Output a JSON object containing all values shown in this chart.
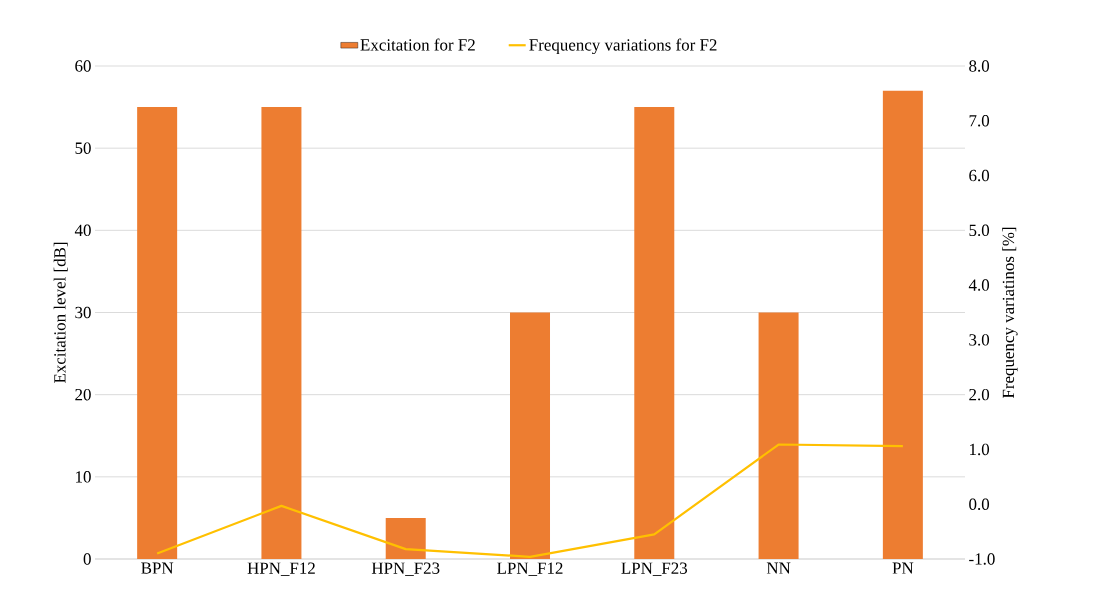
{
  "chart_data": {
    "type": "bar",
    "categories": [
      "BPN",
      "HPN_F12",
      "HPN_F23",
      "LPN_F12",
      "LPN_F23",
      "NN",
      "PN"
    ],
    "series": [
      {
        "name": "Excitation for F2",
        "color": "#ed7d31",
        "values": [
          55,
          55,
          5,
          30,
          55,
          30,
          57
        ]
      },
      {
        "name": "Frequency variations for F2",
        "type": "line",
        "axis": "y2",
        "color": "#ffc000",
        "values": [
          -0.9,
          -0.03,
          -0.82,
          -0.96,
          -0.55,
          1.09,
          1.06
        ]
      }
    ],
    "ylabel": "Excitation level [dB]",
    "y2label": "Frequency  variatinos [%]",
    "ylim": [
      0,
      60
    ],
    "yticks": [
      0,
      10,
      20,
      30,
      40,
      50,
      60
    ],
    "y2lim": [
      -1.0,
      8.0
    ],
    "y2ticks": [
      {
        "value": -1,
        "label": "-1.0"
      },
      {
        "value": 0,
        "label": "0.0"
      },
      {
        "value": 1,
        "label": "1.0"
      },
      {
        "value": 2,
        "label": "2.0"
      },
      {
        "value": 3,
        "label": "3.0"
      },
      {
        "value": 4,
        "label": "4.0"
      },
      {
        "value": 5,
        "label": "5.0"
      },
      {
        "value": 6,
        "label": "6.0"
      },
      {
        "value": 7,
        "label": "7.0"
      },
      {
        "value": 8,
        "label": "8.0"
      }
    ],
    "grid": "y",
    "legend": "top"
  }
}
